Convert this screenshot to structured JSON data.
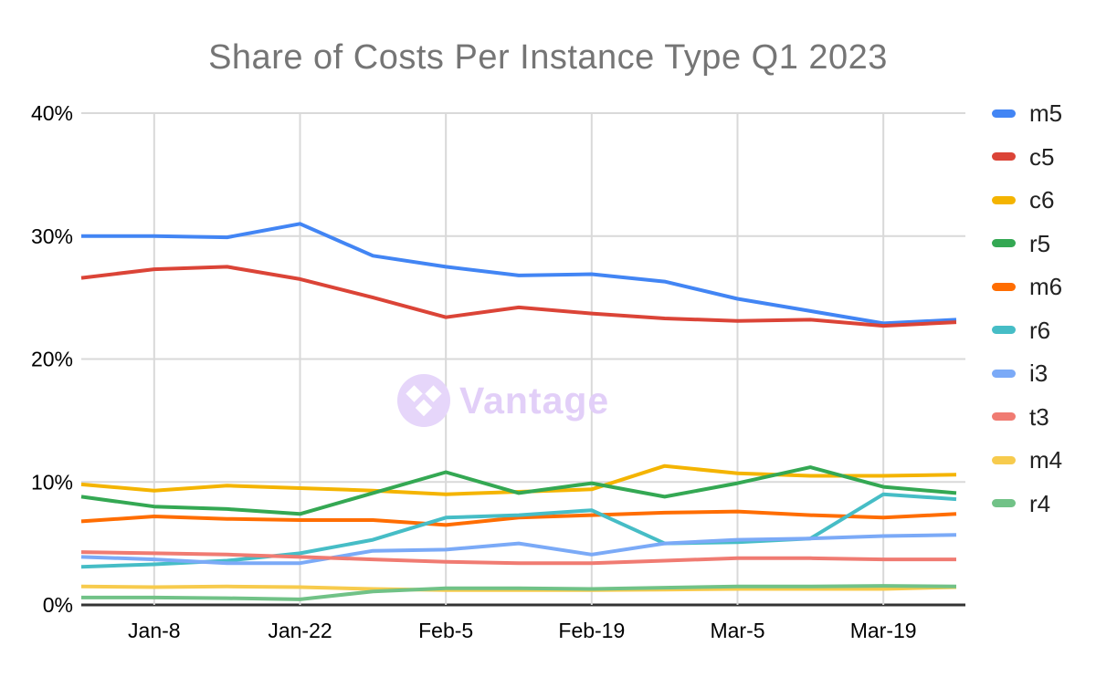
{
  "page": {
    "background": "#ffffff"
  },
  "watermark": {
    "text": "Vantage",
    "icon": "vantage-diamond-logo",
    "circle_color": "#e6d6fa",
    "text_color": "#e2cff8"
  },
  "chart_data": {
    "type": "line",
    "title": "Share of Costs Per Instance Type Q1 2023",
    "title_color": "#757575",
    "x": {
      "points": 13,
      "tick_indices": [
        1,
        3,
        5,
        7,
        9,
        11
      ],
      "tick_labels": [
        "Jan-8",
        "Jan-22",
        "Feb-5",
        "Feb-19",
        "Mar-5",
        "Mar-19"
      ]
    },
    "ylim": [
      0,
      40
    ],
    "y_ticks": [
      0,
      10,
      20,
      30,
      40
    ],
    "y_tick_labels": [
      "0%",
      "10%",
      "20%",
      "30%",
      "40%"
    ],
    "grid": true,
    "grid_color": "#d9d9d9",
    "axis_color": "#333333",
    "tick_label_color": "#000000",
    "legend_position": "right",
    "series": [
      {
        "name": "m5",
        "color": "#4285F4",
        "values": [
          30.0,
          30.0,
          29.9,
          31.0,
          28.4,
          27.5,
          26.8,
          26.9,
          26.3,
          24.9,
          23.9,
          22.9,
          23.2
        ]
      },
      {
        "name": "c5",
        "color": "#DB4437",
        "values": [
          26.6,
          27.3,
          27.5,
          26.5,
          25.0,
          23.4,
          24.2,
          23.7,
          23.3,
          23.1,
          23.2,
          22.7,
          23.0
        ]
      },
      {
        "name": "c6",
        "color": "#F4B400",
        "values": [
          9.8,
          9.3,
          9.7,
          9.5,
          9.3,
          9.0,
          9.2,
          9.4,
          11.3,
          10.7,
          10.5,
          10.5,
          10.6
        ]
      },
      {
        "name": "r5",
        "color": "#34A853",
        "values": [
          8.8,
          8.0,
          7.8,
          7.4,
          9.1,
          10.8,
          9.1,
          9.9,
          8.8,
          9.9,
          11.2,
          9.6,
          9.1
        ]
      },
      {
        "name": "m6",
        "color": "#FF6D01",
        "values": [
          6.8,
          7.2,
          7.0,
          6.9,
          6.9,
          6.5,
          7.1,
          7.3,
          7.5,
          7.6,
          7.3,
          7.1,
          7.4
        ]
      },
      {
        "name": "r6",
        "color": "#46BDC6",
        "values": [
          3.1,
          3.3,
          3.6,
          4.2,
          5.3,
          7.1,
          7.3,
          7.7,
          5.0,
          5.1,
          5.4,
          9.0,
          8.6
        ]
      },
      {
        "name": "i3",
        "color": "#7BAAF7",
        "values": [
          3.9,
          3.7,
          3.4,
          3.4,
          4.4,
          4.5,
          5.0,
          4.1,
          5.0,
          5.3,
          5.4,
          5.6,
          5.7
        ]
      },
      {
        "name": "t3",
        "color": "#F07B72",
        "values": [
          4.3,
          4.2,
          4.1,
          3.9,
          3.7,
          3.5,
          3.4,
          3.4,
          3.6,
          3.8,
          3.8,
          3.7,
          3.7
        ]
      },
      {
        "name": "m4",
        "color": "#F7CB4D",
        "values": [
          1.5,
          1.45,
          1.5,
          1.45,
          1.3,
          1.2,
          1.2,
          1.2,
          1.25,
          1.3,
          1.3,
          1.3,
          1.45
        ]
      },
      {
        "name": "r4",
        "color": "#71C287",
        "values": [
          0.6,
          0.6,
          0.55,
          0.45,
          1.1,
          1.35,
          1.35,
          1.3,
          1.4,
          1.5,
          1.5,
          1.55,
          1.5
        ]
      }
    ]
  }
}
